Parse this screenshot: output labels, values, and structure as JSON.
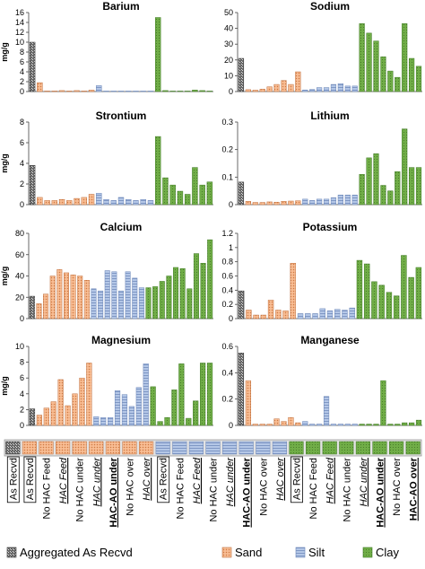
{
  "colors": {
    "aggregated": "#555555",
    "sand": "#f4b183",
    "silt": "#b4c7e7",
    "clay": "#70ad47",
    "highlight_label": "#6b2fa0"
  },
  "categories": [
    "As Recvd",
    "As Recvd",
    "No HAC Feed",
    "HAC Feed",
    "No HAC under",
    "HAC under",
    "HAC-AO under",
    "No HAC over",
    "HAC over",
    "As Recvd",
    "No HAC Feed",
    "HAC Feed",
    "No HAC under",
    "HAC under",
    "HAC-AO under",
    "No HAC over",
    "HAC over",
    "As Recvd",
    "No HAC Feed",
    "HAC Feed",
    "No HAC under",
    "HAC under",
    "HAC-AO under",
    "No HAC over",
    "HAC-AO over"
  ],
  "legend": [
    {
      "key": "aggregated",
      "label": "Aggregated As Recvd"
    },
    {
      "key": "sand",
      "label": "Sand"
    },
    {
      "key": "silt",
      "label": "Silt"
    },
    {
      "key": "clay",
      "label": "Clay"
    }
  ],
  "chart_data": [
    {
      "type": "bar",
      "title": "Barium",
      "ylabel": "mg/g",
      "ylim": [
        0,
        16
      ],
      "yticks": [
        0,
        2,
        4,
        6,
        8,
        10,
        12,
        14,
        16
      ],
      "groups": [
        "aggregated",
        "sand",
        "silt",
        "clay"
      ],
      "values": [
        [
          10.0
        ],
        [
          1.8,
          0.1,
          0.1,
          0.2,
          0.1,
          0.2,
          0.1,
          0.3
        ],
        [
          1.2,
          0.1,
          0.1,
          0.1,
          0.1,
          0.1,
          0.1,
          0.1
        ],
        [
          15.0,
          0.2,
          0.1,
          0.1,
          0.1,
          0.3,
          0.2,
          0.1
        ]
      ]
    },
    {
      "type": "bar",
      "title": "Sodium",
      "ylabel": "",
      "ylim": [
        0,
        50
      ],
      "yticks": [
        0,
        10,
        20,
        30,
        40,
        50
      ],
      "groups": [
        "aggregated",
        "sand",
        "silt",
        "clay"
      ],
      "values": [
        [
          21
        ],
        [
          1.2,
          0.9,
          1.5,
          3,
          4.5,
          7,
          4.5,
          12.5
        ],
        [
          1.0,
          1.3,
          2.5,
          2.5,
          4.5,
          5,
          3.5,
          3.5
        ],
        [
          43,
          37,
          32,
          22,
          13,
          9,
          43,
          21,
          16
        ]
      ]
    },
    {
      "type": "bar",
      "title": "Strontium",
      "ylabel": "mg/g",
      "ylim": [
        0,
        8
      ],
      "yticks": [
        0,
        2,
        4,
        6,
        8
      ],
      "groups": [
        "aggregated",
        "sand",
        "silt",
        "clay"
      ],
      "values": [
        [
          3.8
        ],
        [
          0.7,
          0.4,
          0.4,
          0.5,
          0.4,
          0.6,
          0.7,
          1.0
        ],
        [
          1.1,
          0.5,
          0.4,
          0.7,
          0.5,
          0.4,
          0.5,
          0.4
        ],
        [
          6.6,
          2.6,
          1.9,
          1.3,
          1.0,
          3.6,
          1.9,
          2.2
        ]
      ]
    },
    {
      "type": "bar",
      "title": "Lithium",
      "ylabel": "",
      "ylim": [
        0,
        0.3
      ],
      "yticks": [
        0,
        0.1,
        0.2,
        0.3
      ],
      "groups": [
        "aggregated",
        "sand",
        "silt",
        "clay"
      ],
      "values": [
        [
          0.082
        ],
        [
          0.012,
          0.008,
          0.008,
          0.01,
          0.009,
          0.012,
          0.013,
          0.014
        ],
        [
          0.02,
          0.015,
          0.02,
          0.02,
          0.025,
          0.035,
          0.035,
          0.035
        ],
        [
          0.11,
          0.17,
          0.185,
          0.07,
          0.05,
          0.12,
          0.275,
          0.135,
          0.135
        ]
      ]
    },
    {
      "type": "bar",
      "title": "Calcium",
      "ylabel": "mg/g",
      "ylim": [
        0,
        80
      ],
      "yticks": [
        0,
        20,
        40,
        60,
        80
      ],
      "groups": [
        "aggregated",
        "sand",
        "silt",
        "clay"
      ],
      "values": [
        [
          21
        ],
        [
          14,
          23,
          40,
          46,
          43,
          41,
          40,
          36
        ],
        [
          28,
          26,
          45,
          44,
          26,
          44,
          38,
          29
        ],
        [
          29,
          30,
          35,
          40,
          48,
          47,
          28,
          61,
          52,
          74
        ]
      ]
    },
    {
      "type": "bar",
      "title": "Potassium",
      "ylabel": "",
      "ylim": [
        0,
        1.2
      ],
      "yticks": [
        0,
        0.2,
        0.4,
        0.6,
        0.8,
        1,
        1.2
      ],
      "groups": [
        "aggregated",
        "sand",
        "silt",
        "clay"
      ],
      "values": [
        [
          0.39
        ],
        [
          0.12,
          0.05,
          0.05,
          0.26,
          0.12,
          0.11,
          0.78
        ],
        [
          0.07,
          0.07,
          0.07,
          0.14,
          0.11,
          0.13,
          0.12,
          0.15
        ],
        [
          0.82,
          0.77,
          0.52,
          0.47,
          0.37,
          0.32,
          0.89,
          0.58,
          0.72
        ]
      ]
    },
    {
      "type": "bar",
      "title": "Magnesium",
      "ylabel": "mg/g",
      "ylim": [
        0,
        10
      ],
      "yticks": [
        0,
        2,
        4,
        6,
        8,
        10
      ],
      "groups": [
        "aggregated",
        "sand",
        "silt",
        "clay"
      ],
      "values": [
        [
          2.1
        ],
        [
          1.3,
          2.2,
          3.0,
          5.8,
          2.5,
          4.0,
          6.0,
          7.9
        ],
        [
          1.1,
          1.0,
          1.0,
          4.4,
          3.9,
          2.4,
          4.8,
          7.8
        ],
        [
          4.9,
          0.5,
          1.0,
          4.5,
          7.8,
          0.9,
          3.1,
          7.9,
          7.9
        ]
      ]
    },
    {
      "type": "bar",
      "title": "Manganese",
      "ylabel": "",
      "ylim": [
        0,
        0.6
      ],
      "yticks": [
        0,
        0.2,
        0.4,
        0.6
      ],
      "groups": [
        "aggregated",
        "sand",
        "silt",
        "clay"
      ],
      "values": [
        [
          0.55
        ],
        [
          0.34,
          0.01,
          0.01,
          0.01,
          0.05,
          0.03,
          0.06,
          0.02
        ],
        [
          0.03,
          0.01,
          0.01,
          0.22,
          0.01,
          0.01,
          0.01,
          0.01
        ],
        [
          0.01,
          0.01,
          0.01,
          0.34,
          0.01,
          0.01,
          0.02,
          0.02,
          0.04
        ]
      ]
    }
  ]
}
